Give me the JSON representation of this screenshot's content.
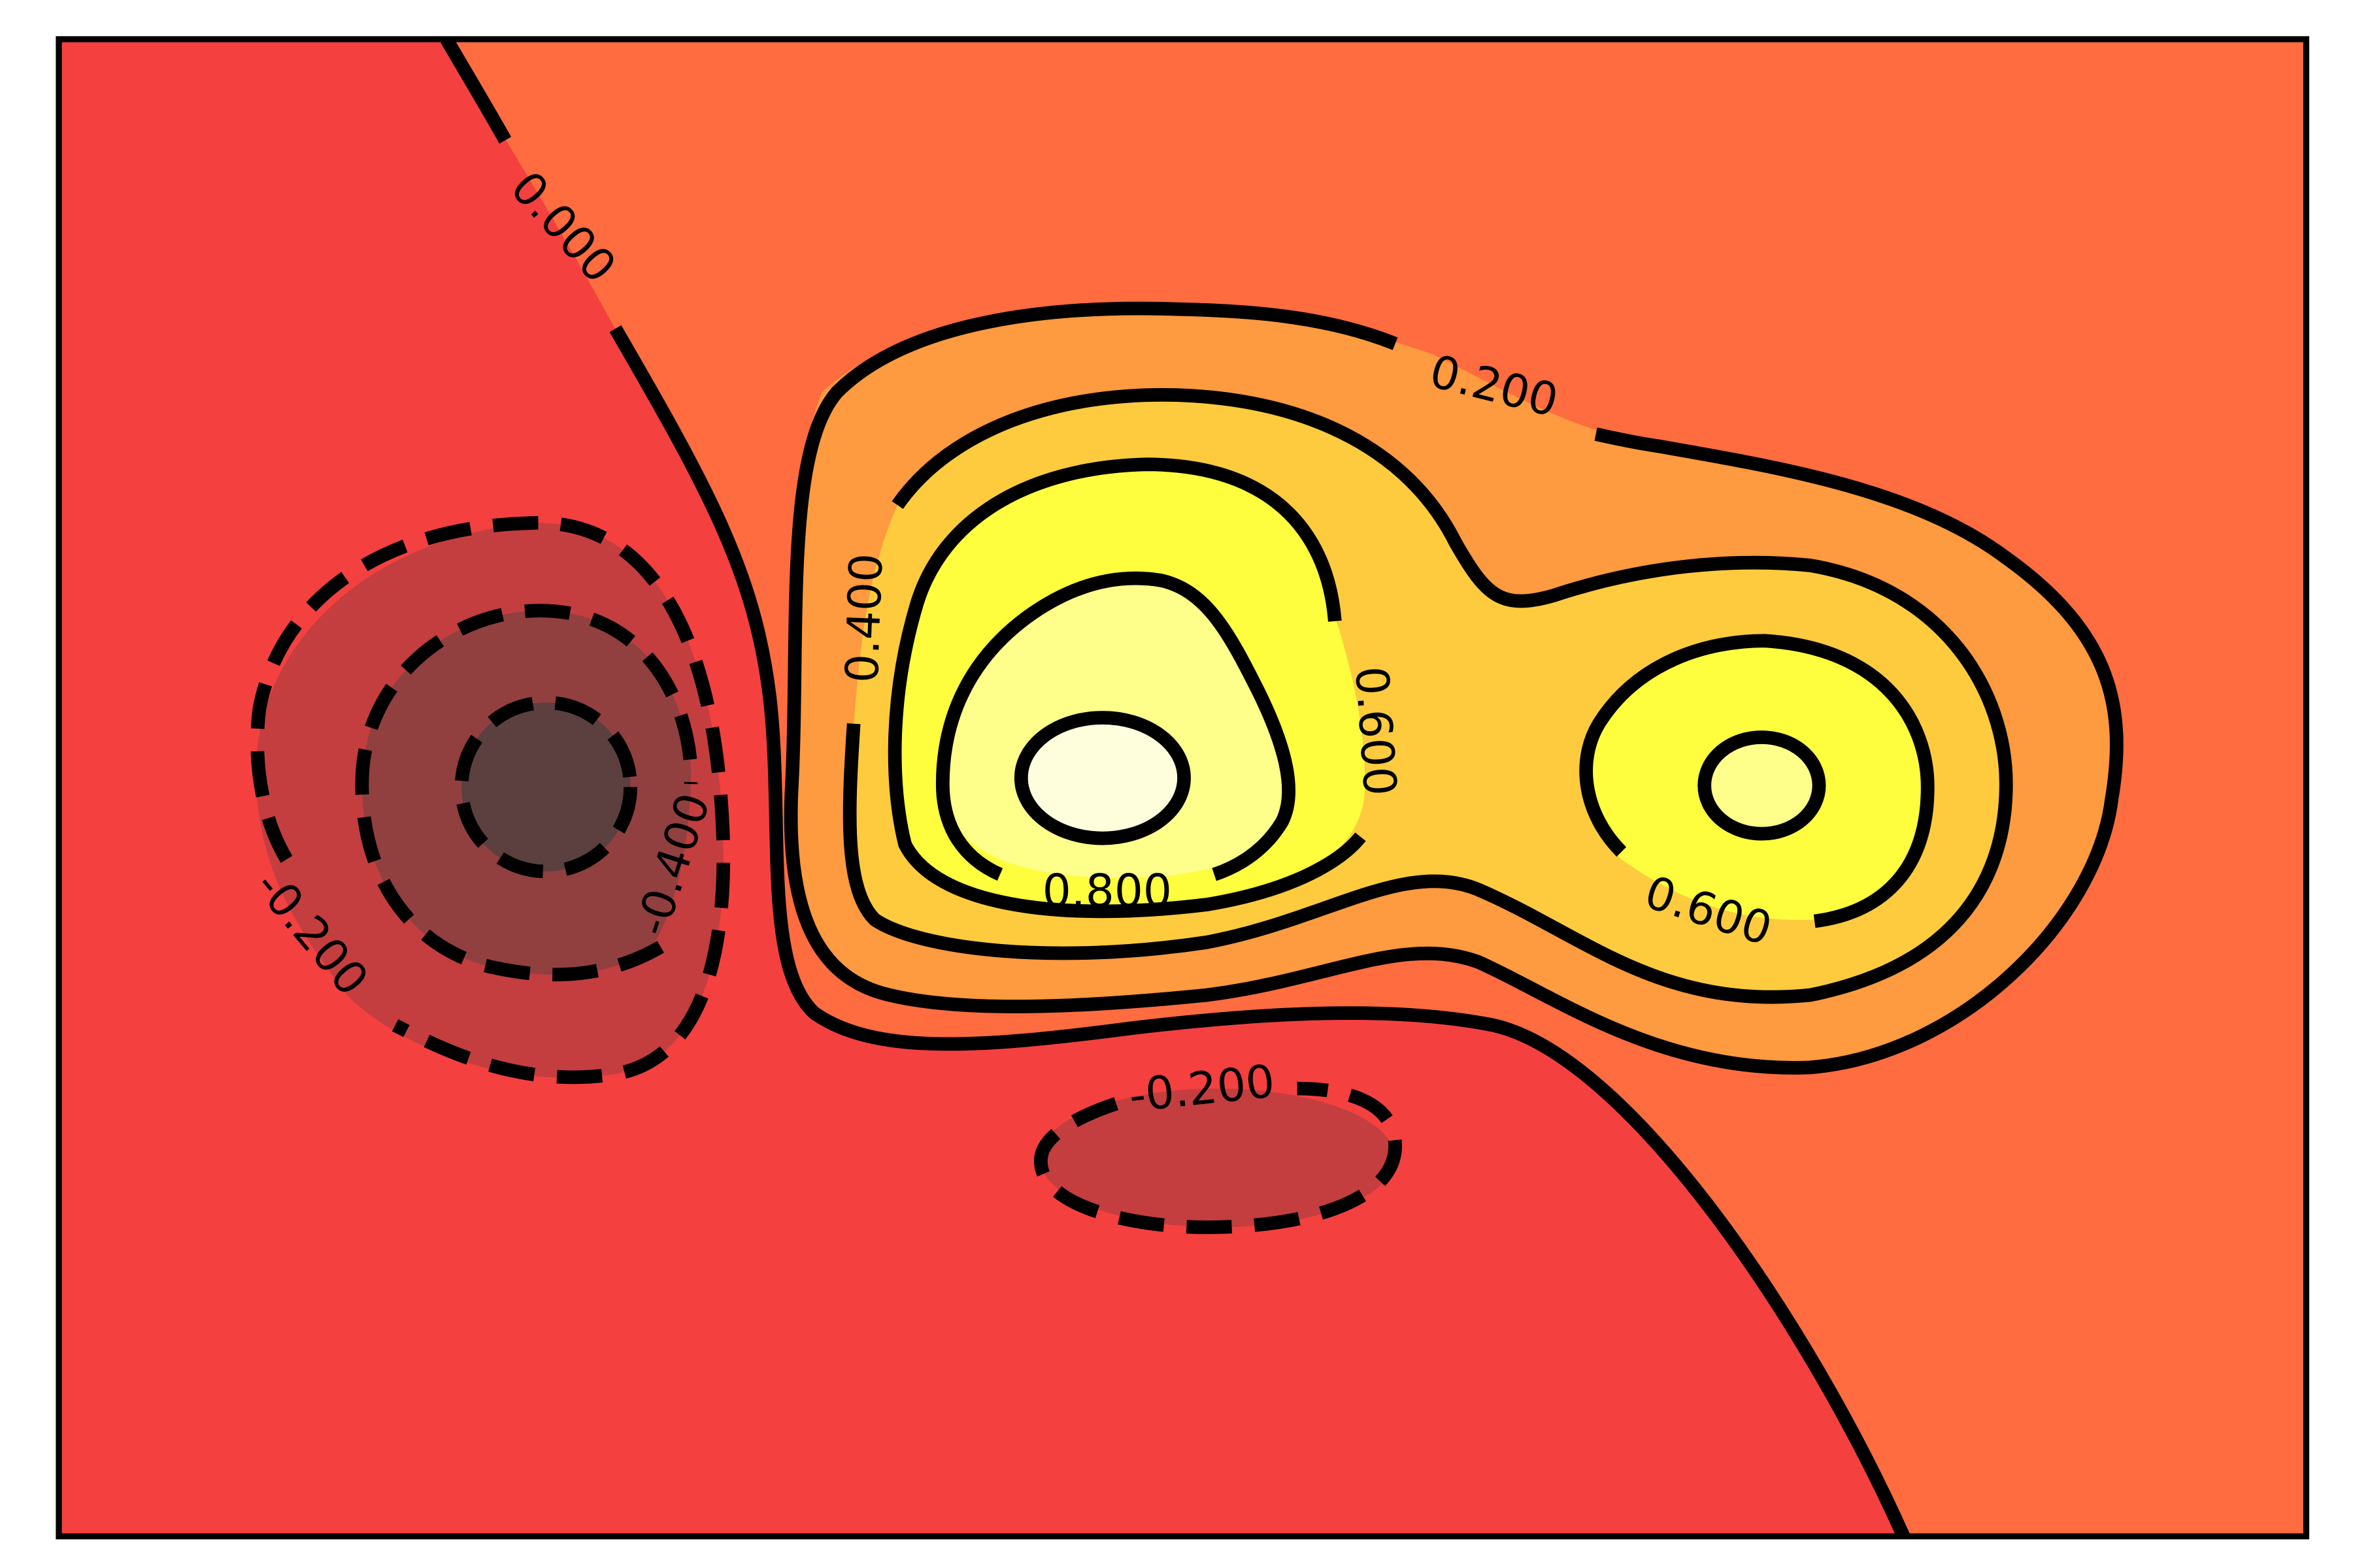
{
  "chart_data": {
    "type": "contour",
    "title": "",
    "xlabel": "",
    "ylabel": "",
    "axis_ticks": "hidden",
    "colormap": "hot",
    "levels": [
      -0.6,
      -0.4,
      -0.2,
      0.0,
      0.2,
      0.4,
      0.6,
      0.8,
      1.0
    ],
    "fill_colors": {
      "-0.6": "#5c3f3f",
      "-0.4": "#923f3f",
      "-0.2": "#c43e3f",
      "0.0": "#f54040",
      "0.2": "#fe6c3f",
      "0.4": "#fe9a3f",
      "0.6": "#fecb3f",
      "0.8": "#fefe3f",
      "1.0": "#fefe8a",
      "max": "#fefedc"
    },
    "line_style": {
      "negative": "dashed",
      "positive": "solid",
      "color": "#000000"
    },
    "contour_labels": [
      {
        "level": 0.0,
        "text": "0.000"
      },
      {
        "level": 0.2,
        "text": "0.200"
      },
      {
        "level": 0.4,
        "text": "0.400"
      },
      {
        "level": 0.6,
        "text": "0.600"
      },
      {
        "level": 0.6,
        "text": "0.600"
      },
      {
        "level": 0.8,
        "text": "0.800"
      },
      {
        "level": -0.2,
        "text": "-0.200"
      },
      {
        "level": -0.2,
        "text": "-0.200"
      },
      {
        "level": -0.4,
        "text": "-0.400"
      }
    ],
    "extrema": [
      {
        "kind": "minimum",
        "value": -0.7,
        "near": "left-center"
      },
      {
        "kind": "maximum",
        "value": 1.0,
        "near": "center"
      },
      {
        "kind": "local maximum",
        "value": 0.9,
        "near": "right-center"
      },
      {
        "kind": "local minimum",
        "value": -0.25,
        "near": "bottom-center"
      }
    ]
  }
}
